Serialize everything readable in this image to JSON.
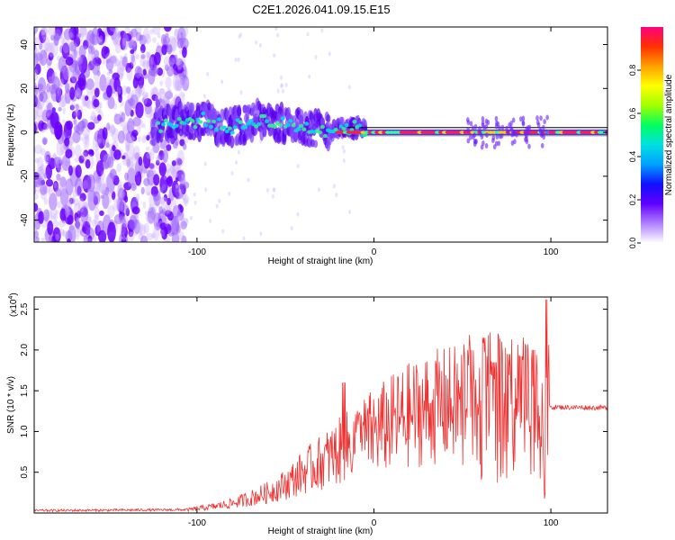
{
  "title": "C2E1.2026.041.09.15.E15",
  "chart_data": [
    {
      "type": "heatmap",
      "xlabel": "Height of straight line (km)",
      "ylabel": "Frequency (Hz)",
      "xlim": [
        -192,
        132
      ],
      "ylim": [
        -50,
        48
      ],
      "x_ticks": [
        -100,
        0,
        100
      ],
      "y_ticks": [
        -40,
        -20,
        0,
        20,
        40
      ],
      "colorbar": {
        "label": "Normalized spectral amplitude",
        "range": [
          0,
          1
        ],
        "ticks": [
          0.0,
          0.2,
          0.4,
          0.6,
          0.8
        ],
        "colors": [
          "#ffffff",
          "#b080ff",
          "#6000ff",
          "#1010ff",
          "#00a0ff",
          "#00e0e0",
          "#00ff60",
          "#a0ff00",
          "#ffff00",
          "#ffa000",
          "#ff3000",
          "#ff0080"
        ]
      },
      "noise_region_x": [
        -192,
        -112
      ],
      "signal_track": [
        [
          -125,
          3
        ],
        [
          -110,
          4
        ],
        [
          -95,
          6
        ],
        [
          -85,
          2
        ],
        [
          -75,
          3
        ],
        [
          -65,
          6
        ],
        [
          -55,
          4
        ],
        [
          -45,
          3
        ],
        [
          -35,
          2
        ],
        [
          -25,
          1
        ],
        [
          -20,
          2
        ],
        [
          -10,
          2
        ],
        [
          0,
          0
        ],
        [
          10,
          2
        ],
        [
          20,
          0
        ],
        [
          50,
          0
        ],
        [
          60,
          0
        ],
        [
          80,
          0
        ],
        [
          95,
          0
        ],
        [
          132,
          0
        ]
      ]
    },
    {
      "type": "line",
      "xlabel": "Height of straight line (km)",
      "ylabel": "SNR (10 * v/v)",
      "y_scale_label": "(x10",
      "y_scale_exp": "4",
      "xlim": [
        -192,
        132
      ],
      "ylim": [
        0,
        2.65
      ],
      "x_ticks": [
        -100,
        0,
        100
      ],
      "y_ticks": [
        0.5,
        1.0,
        1.5,
        2.0,
        2.5
      ],
      "color": "#ee3333",
      "envelope": [
        [
          -192,
          0.03
        ],
        [
          -105,
          0.04
        ],
        [
          -90,
          0.08
        ],
        [
          -80,
          0.12
        ],
        [
          -70,
          0.18
        ],
        [
          -60,
          0.25
        ],
        [
          -50,
          0.35
        ],
        [
          -40,
          0.5
        ],
        [
          -30,
          0.62
        ],
        [
          -20,
          0.75
        ],
        [
          -10,
          0.88
        ],
        [
          0,
          1.0
        ],
        [
          10,
          1.1
        ],
        [
          20,
          1.2
        ],
        [
          30,
          1.28
        ],
        [
          40,
          1.32
        ],
        [
          50,
          1.35
        ],
        [
          60,
          1.3
        ],
        [
          70,
          1.3
        ],
        [
          80,
          1.3
        ],
        [
          90,
          1.3
        ],
        [
          100,
          1.3
        ],
        [
          132,
          1.29
        ]
      ],
      "spikes": [
        [
          -17,
          1.6
        ],
        [
          -8,
          1.2
        ],
        [
          32,
          1.35
        ],
        [
          54,
          2.0
        ],
        [
          62,
          2.15
        ],
        [
          68,
          1.85
        ],
        [
          76,
          1.95
        ],
        [
          83,
          1.92
        ],
        [
          90,
          2.0
        ],
        [
          97,
          2.62
        ]
      ]
    }
  ]
}
